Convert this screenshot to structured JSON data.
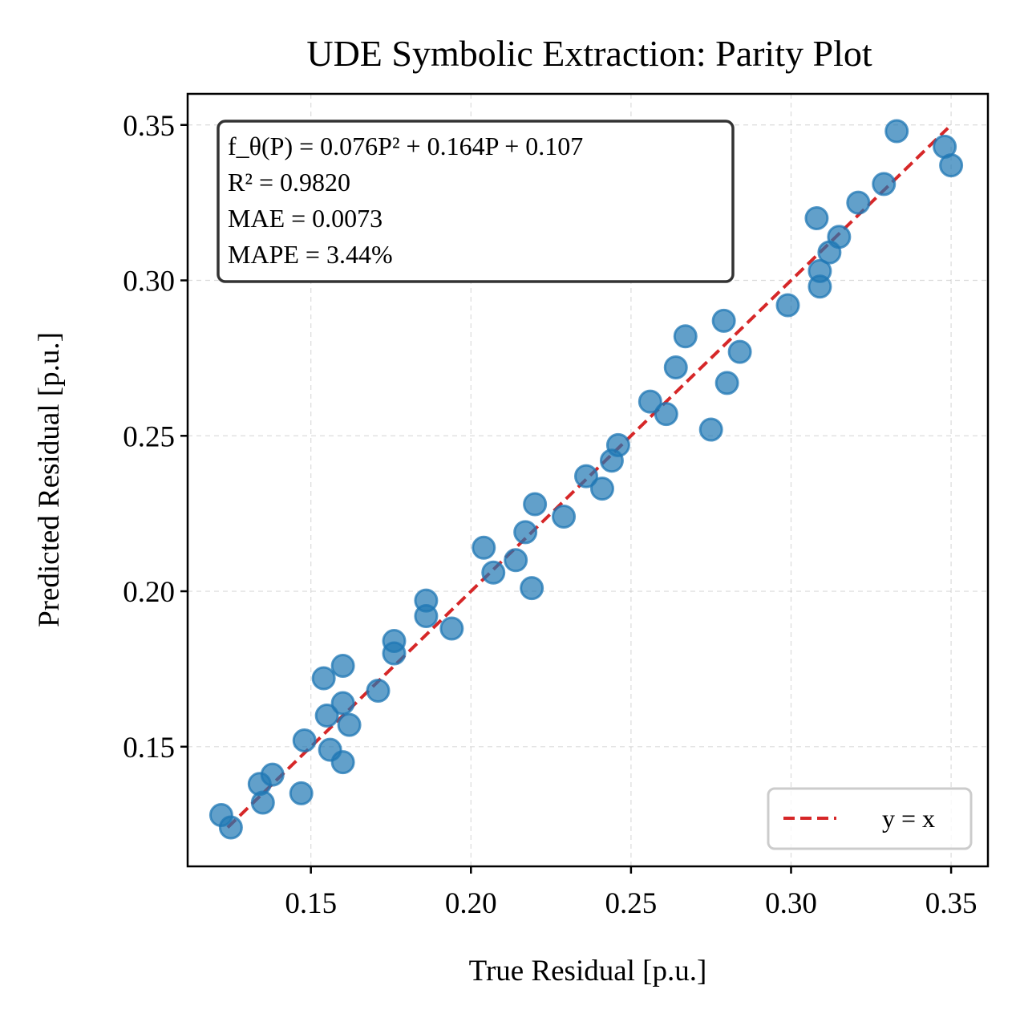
{
  "chart_data": {
    "type": "scatter",
    "title": "UDE Symbolic Extraction: Parity Plot",
    "xlabel": "True Residual [p.u.]",
    "ylabel": "Predicted Residual [p.u.]",
    "xlim": [
      0.1115,
      0.3615
    ],
    "ylim": [
      0.1115,
      0.36
    ],
    "xticks": [
      "0.15",
      "0.20",
      "0.25",
      "0.30",
      "0.35"
    ],
    "yticks": [
      "0.15",
      "0.20",
      "0.25",
      "0.30",
      "0.35"
    ],
    "grid": true,
    "annotation": [
      "f_θ(P) = 0.076P² + 0.164P + 0.107",
      "R² = 0.9820",
      "MAE = 0.0073",
      "MAPE = 3.44%"
    ],
    "legend": {
      "position": "bottom-right",
      "entries": [
        "y = x"
      ]
    },
    "reference_line": {
      "name": "y = x",
      "from": [
        0.124,
        0.124
      ],
      "to": [
        0.349,
        0.349
      ],
      "color": "#d62728"
    },
    "series": [
      {
        "color": "#1f77b4",
        "points": [
          [
            0.122,
            0.128
          ],
          [
            0.125,
            0.124
          ],
          [
            0.134,
            0.138
          ],
          [
            0.135,
            0.132
          ],
          [
            0.138,
            0.141
          ],
          [
            0.147,
            0.135
          ],
          [
            0.148,
            0.152
          ],
          [
            0.154,
            0.172
          ],
          [
            0.155,
            0.16
          ],
          [
            0.156,
            0.149
          ],
          [
            0.16,
            0.164
          ],
          [
            0.16,
            0.176
          ],
          [
            0.16,
            0.145
          ],
          [
            0.162,
            0.157
          ],
          [
            0.171,
            0.168
          ],
          [
            0.176,
            0.184
          ],
          [
            0.176,
            0.18
          ],
          [
            0.186,
            0.197
          ],
          [
            0.186,
            0.192
          ],
          [
            0.194,
            0.188
          ],
          [
            0.204,
            0.214
          ],
          [
            0.207,
            0.206
          ],
          [
            0.214,
            0.21
          ],
          [
            0.217,
            0.219
          ],
          [
            0.219,
            0.201
          ],
          [
            0.22,
            0.228
          ],
          [
            0.229,
            0.224
          ],
          [
            0.236,
            0.237
          ],
          [
            0.241,
            0.233
          ],
          [
            0.244,
            0.242
          ],
          [
            0.246,
            0.247
          ],
          [
            0.256,
            0.261
          ],
          [
            0.261,
            0.257
          ],
          [
            0.264,
            0.272
          ],
          [
            0.267,
            0.282
          ],
          [
            0.275,
            0.252
          ],
          [
            0.279,
            0.287
          ],
          [
            0.28,
            0.267
          ],
          [
            0.284,
            0.277
          ],
          [
            0.299,
            0.292
          ],
          [
            0.308,
            0.32
          ],
          [
            0.309,
            0.303
          ],
          [
            0.309,
            0.298
          ],
          [
            0.312,
            0.309
          ],
          [
            0.315,
            0.314
          ],
          [
            0.321,
            0.325
          ],
          [
            0.329,
            0.331
          ],
          [
            0.333,
            0.348
          ],
          [
            0.348,
            0.343
          ],
          [
            0.35,
            0.337
          ]
        ]
      }
    ]
  }
}
